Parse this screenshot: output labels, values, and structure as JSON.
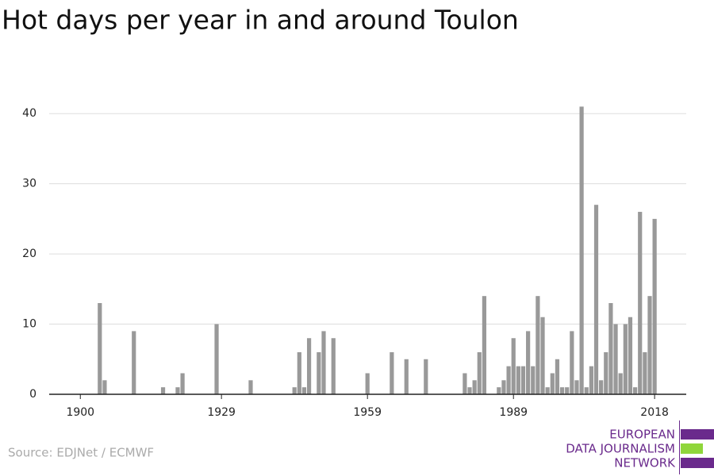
{
  "chart_data": {
    "type": "bar",
    "title": "Hot days per year in and around Toulon",
    "source": "Source: EDJNet / ECMWF",
    "logo": [
      "EUROPEAN",
      "DATA JOURNALISM",
      "NETWORK"
    ],
    "color": "#999999",
    "x": [
      1904,
      1905,
      1911,
      1917,
      1920,
      1921,
      1928,
      1935,
      1944,
      1945,
      1946,
      1947,
      1949,
      1950,
      1952,
      1959,
      1964,
      1967,
      1971,
      1979,
      1980,
      1981,
      1982,
      1983,
      1986,
      1987,
      1988,
      1989,
      1990,
      1991,
      1992,
      1993,
      1994,
      1995,
      1996,
      1997,
      1998,
      1999,
      2000,
      2001,
      2002,
      2003,
      2004,
      2005,
      2006,
      2007,
      2008,
      2009,
      2010,
      2011,
      2012,
      2013,
      2014,
      2015,
      2016,
      2017,
      2018
    ],
    "values": [
      13,
      2,
      9,
      1,
      1,
      3,
      10,
      2,
      1,
      6,
      1,
      8,
      6,
      9,
      8,
      3,
      6,
      5,
      5,
      3,
      1,
      2,
      6,
      14,
      1,
      2,
      4,
      8,
      4,
      4,
      9,
      4,
      14,
      11,
      1,
      3,
      5,
      1,
      1,
      9,
      2,
      41,
      1,
      4,
      27,
      2,
      6,
      13,
      10,
      3,
      10,
      11,
      1,
      26,
      6,
      14,
      25
    ],
    "xlim": [
      1893.6,
      2024.5
    ],
    "xticks": [
      1900,
      1929,
      1959,
      1989,
      2018
    ],
    "ylim": [
      0,
      45
    ],
    "yticks": [
      0,
      10,
      20,
      30,
      40
    ],
    "grid": true
  }
}
